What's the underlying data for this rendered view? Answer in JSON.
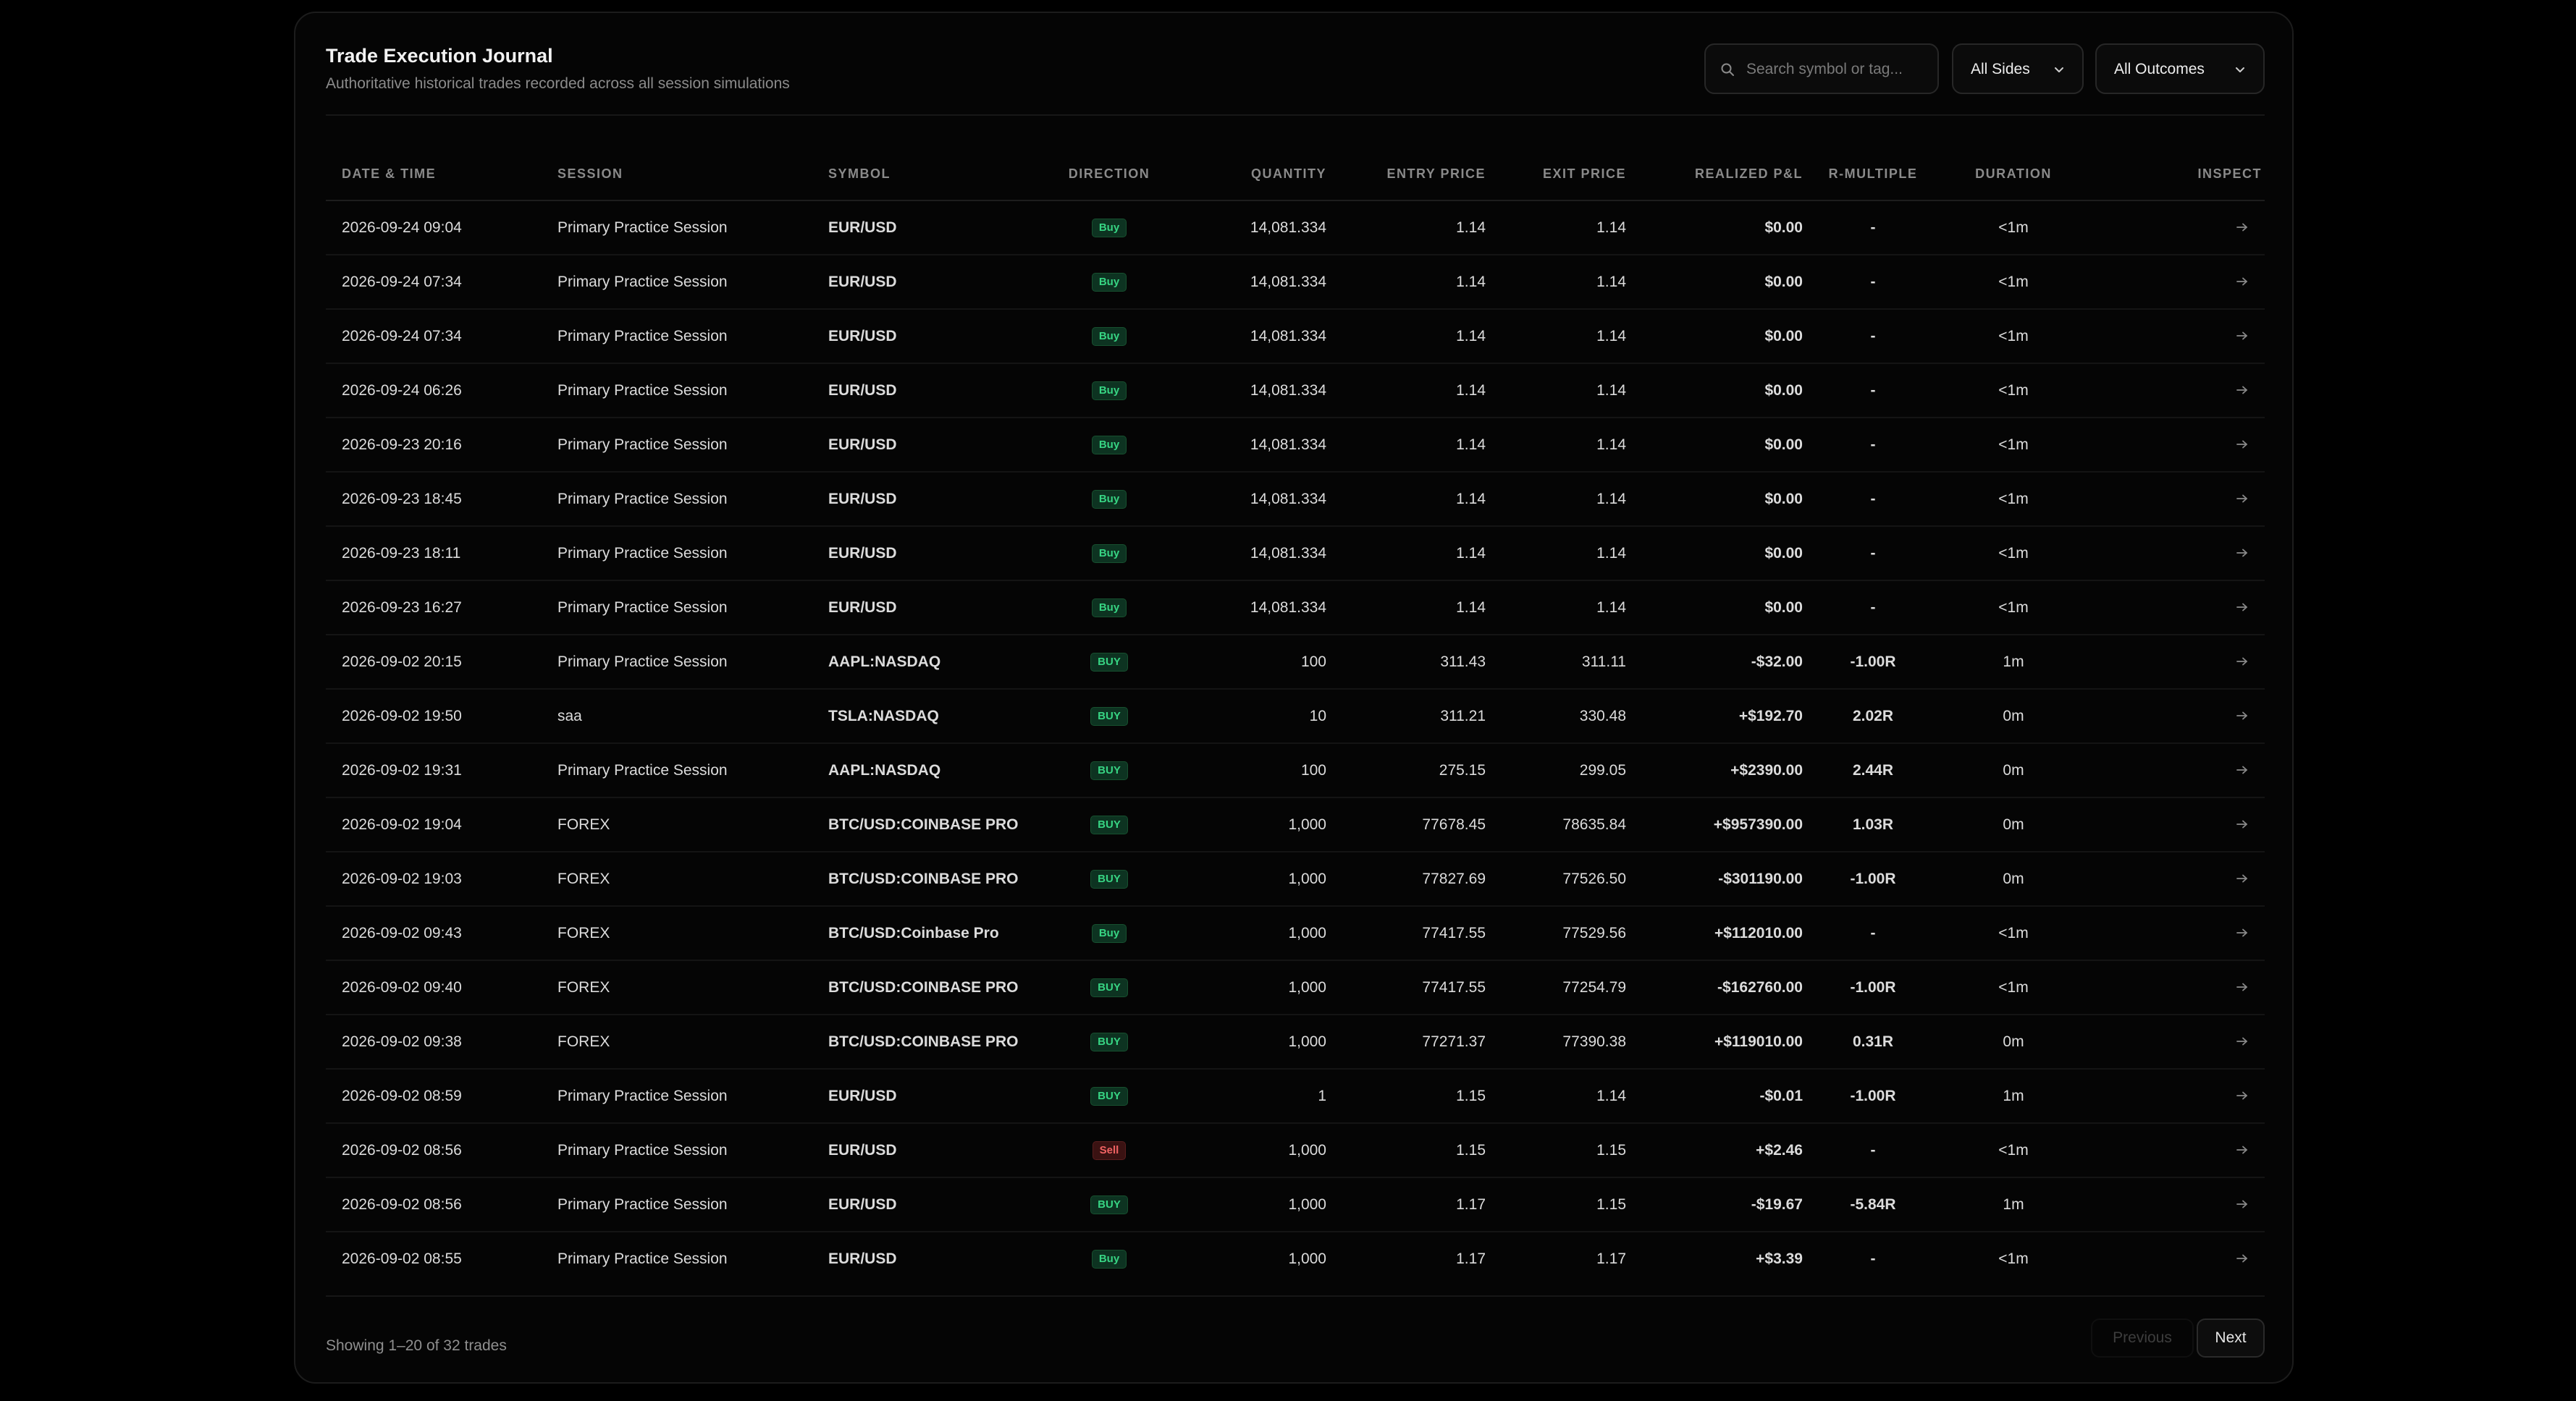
{
  "header": {
    "title": "Trade Execution Journal",
    "subtitle": "Authoritative historical trades recorded across all session simulations"
  },
  "filters": {
    "search_placeholder": "Search symbol or tag...",
    "search_icon": "search-icon",
    "sides_label": "All Sides",
    "outcomes_label": "All Outcomes",
    "chevron_icon": "chevron-down-icon"
  },
  "colors": {
    "positive": "#34d17f",
    "negative": "#f05d5d",
    "r_multiple": "#3fb7ea",
    "buy_badge_bg": "#0d3321",
    "sell_badge_bg": "#3a1212"
  },
  "table": {
    "columns": [
      "DATE & TIME",
      "SESSION",
      "SYMBOL",
      "DIRECTION",
      "QUANTITY",
      "ENTRY PRICE",
      "EXIT PRICE",
      "REALIZED P&L",
      "R-MULTIPLE",
      "DURATION",
      "INSPECT"
    ],
    "inspect_icon": "arrow-right-icon",
    "rows": [
      {
        "dt": "2026-09-24 09:04",
        "session": "Primary Practice Session",
        "symbol": "EUR/USD",
        "dir": "Buy",
        "qty": "14,081.334",
        "entry": "1.14",
        "exit": "1.14",
        "pnl": "$0.00",
        "rm": "-",
        "dur": "<1m"
      },
      {
        "dt": "2026-09-24 07:34",
        "session": "Primary Practice Session",
        "symbol": "EUR/USD",
        "dir": "Buy",
        "qty": "14,081.334",
        "entry": "1.14",
        "exit": "1.14",
        "pnl": "$0.00",
        "rm": "-",
        "dur": "<1m"
      },
      {
        "dt": "2026-09-24 07:34",
        "session": "Primary Practice Session",
        "symbol": "EUR/USD",
        "dir": "Buy",
        "qty": "14,081.334",
        "entry": "1.14",
        "exit": "1.14",
        "pnl": "$0.00",
        "rm": "-",
        "dur": "<1m"
      },
      {
        "dt": "2026-09-24 06:26",
        "session": "Primary Practice Session",
        "symbol": "EUR/USD",
        "dir": "Buy",
        "qty": "14,081.334",
        "entry": "1.14",
        "exit": "1.14",
        "pnl": "$0.00",
        "rm": "-",
        "dur": "<1m"
      },
      {
        "dt": "2026-09-23 20:16",
        "session": "Primary Practice Session",
        "symbol": "EUR/USD",
        "dir": "Buy",
        "qty": "14,081.334",
        "entry": "1.14",
        "exit": "1.14",
        "pnl": "$0.00",
        "rm": "-",
        "dur": "<1m"
      },
      {
        "dt": "2026-09-23 18:45",
        "session": "Primary Practice Session",
        "symbol": "EUR/USD",
        "dir": "Buy",
        "qty": "14,081.334",
        "entry": "1.14",
        "exit": "1.14",
        "pnl": "$0.00",
        "rm": "-",
        "dur": "<1m"
      },
      {
        "dt": "2026-09-23 18:11",
        "session": "Primary Practice Session",
        "symbol": "EUR/USD",
        "dir": "Buy",
        "qty": "14,081.334",
        "entry": "1.14",
        "exit": "1.14",
        "pnl": "$0.00",
        "rm": "-",
        "dur": "<1m"
      },
      {
        "dt": "2026-09-23 16:27",
        "session": "Primary Practice Session",
        "symbol": "EUR/USD",
        "dir": "Buy",
        "qty": "14,081.334",
        "entry": "1.14",
        "exit": "1.14",
        "pnl": "$0.00",
        "rm": "-",
        "dur": "<1m"
      },
      {
        "dt": "2026-09-02 20:15",
        "session": "Primary Practice Session",
        "symbol": "AAPL:NASDAQ",
        "dir": "BUY",
        "qty": "100",
        "entry": "311.43",
        "exit": "311.11",
        "pnl": "-$32.00",
        "rm": "-1.00R",
        "dur": "1m"
      },
      {
        "dt": "2026-09-02 19:50",
        "session": "saa",
        "symbol": "TSLA:NASDAQ",
        "dir": "BUY",
        "qty": "10",
        "entry": "311.21",
        "exit": "330.48",
        "pnl": "+$192.70",
        "rm": "2.02R",
        "dur": "0m"
      },
      {
        "dt": "2026-09-02 19:31",
        "session": "Primary Practice Session",
        "symbol": "AAPL:NASDAQ",
        "dir": "BUY",
        "qty": "100",
        "entry": "275.15",
        "exit": "299.05",
        "pnl": "+$2390.00",
        "rm": "2.44R",
        "dur": "0m"
      },
      {
        "dt": "2026-09-02 19:04",
        "session": "FOREX",
        "symbol": "BTC/USD:COINBASE PRO",
        "dir": "BUY",
        "qty": "1,000",
        "entry": "77678.45",
        "exit": "78635.84",
        "pnl": "+$957390.00",
        "rm": "1.03R",
        "dur": "0m"
      },
      {
        "dt": "2026-09-02 19:03",
        "session": "FOREX",
        "symbol": "BTC/USD:COINBASE PRO",
        "dir": "BUY",
        "qty": "1,000",
        "entry": "77827.69",
        "exit": "77526.50",
        "pnl": "-$301190.00",
        "rm": "-1.00R",
        "dur": "0m"
      },
      {
        "dt": "2026-09-02 09:43",
        "session": "FOREX",
        "symbol": "BTC/USD:Coinbase Pro",
        "dir": "Buy",
        "qty": "1,000",
        "entry": "77417.55",
        "exit": "77529.56",
        "pnl": "+$112010.00",
        "rm": "-",
        "dur": "<1m"
      },
      {
        "dt": "2026-09-02 09:40",
        "session": "FOREX",
        "symbol": "BTC/USD:COINBASE PRO",
        "dir": "BUY",
        "qty": "1,000",
        "entry": "77417.55",
        "exit": "77254.79",
        "pnl": "-$162760.00",
        "rm": "-1.00R",
        "dur": "<1m"
      },
      {
        "dt": "2026-09-02 09:38",
        "session": "FOREX",
        "symbol": "BTC/USD:COINBASE PRO",
        "dir": "BUY",
        "qty": "1,000",
        "entry": "77271.37",
        "exit": "77390.38",
        "pnl": "+$119010.00",
        "rm": "0.31R",
        "dur": "0m"
      },
      {
        "dt": "2026-09-02 08:59",
        "session": "Primary Practice Session",
        "symbol": "EUR/USD",
        "dir": "BUY",
        "qty": "1",
        "entry": "1.15",
        "exit": "1.14",
        "pnl": "-$0.01",
        "rm": "-1.00R",
        "dur": "1m"
      },
      {
        "dt": "2026-09-02 08:56",
        "session": "Primary Practice Session",
        "symbol": "EUR/USD",
        "dir": "Sell",
        "qty": "1,000",
        "entry": "1.15",
        "exit": "1.15",
        "pnl": "+$2.46",
        "rm": "-",
        "dur": "<1m"
      },
      {
        "dt": "2026-09-02 08:56",
        "session": "Primary Practice Session",
        "symbol": "EUR/USD",
        "dir": "BUY",
        "qty": "1,000",
        "entry": "1.17",
        "exit": "1.15",
        "pnl": "-$19.67",
        "rm": "-5.84R",
        "dur": "1m"
      },
      {
        "dt": "2026-09-02 08:55",
        "session": "Primary Practice Session",
        "symbol": "EUR/USD",
        "dir": "Buy",
        "qty": "1,000",
        "entry": "1.17",
        "exit": "1.17",
        "pnl": "+$3.39",
        "rm": "-",
        "dur": "<1m"
      }
    ]
  },
  "footer": {
    "showing": "Showing 1–20 of 32 trades",
    "prev_label": "Previous",
    "next_label": "Next"
  }
}
